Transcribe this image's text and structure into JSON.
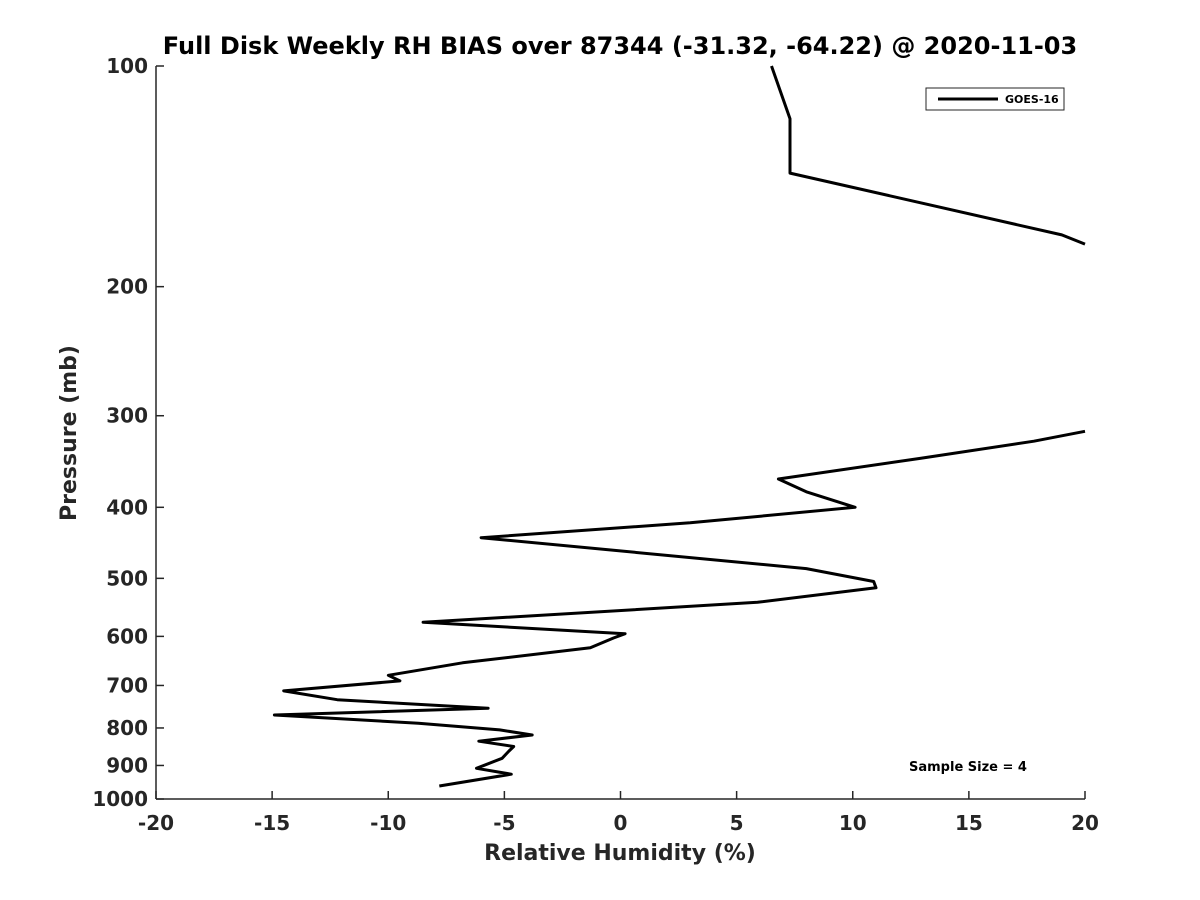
{
  "chart_data": {
    "type": "line",
    "title": "Full Disk Weekly RH BIAS over 87344 (-31.32, -64.22) @ 2020-11-03",
    "xlabel": "Relative Humidity (%)",
    "ylabel": "Pressure (mb)",
    "xlim": [
      -20,
      20
    ],
    "ylim": [
      100,
      1000
    ],
    "y_scale": "log",
    "y_reversed": true,
    "x_ticks": [
      "-20",
      "-15",
      "-10",
      "-5",
      "0",
      "5",
      "10",
      "15",
      "20"
    ],
    "y_ticks": [
      "100",
      "200",
      "300",
      "400",
      "500",
      "600",
      "700",
      "800",
      "900",
      "1000"
    ],
    "grid": false,
    "legend_position": "top-right",
    "annotation": "Sample Size = 4",
    "series": [
      {
        "name": "GOES-16",
        "color": "#000000",
        "segments": [
          {
            "x": [
              6.5,
              7.3,
              7.3,
              7.3,
              19.0,
              20.0
            ],
            "y": [
              100,
              118,
              118,
              140,
              170,
              175
            ]
          },
          {
            "x": [
              20.0,
              17.8,
              12.9,
              6.8,
              8.0,
              10.1,
              3.0,
              -6.0,
              8.0,
              10.9,
              11.0,
              5.9,
              -8.5,
              0.2,
              -0.3,
              -1.3,
              -6.8,
              -10.0,
              -9.5,
              -14.5,
              -12.2,
              -5.7,
              -14.9,
              -8.7,
              -5.2,
              -3.8,
              -6.1,
              -4.6,
              -4.8,
              -5.1,
              -6.2,
              -4.7,
              -7.8
            ],
            "y": [
              315,
              325,
              343,
              366,
              381,
              400,
              420,
              440,
              485,
              505,
              515,
              539,
              574,
              595,
              603,
              622,
              652,
              678,
              690,
              712,
              732,
              752,
              768,
              788,
              805,
              818,
              834,
              848,
              860,
              880,
              908,
              925,
              960
            ]
          }
        ]
      }
    ]
  }
}
